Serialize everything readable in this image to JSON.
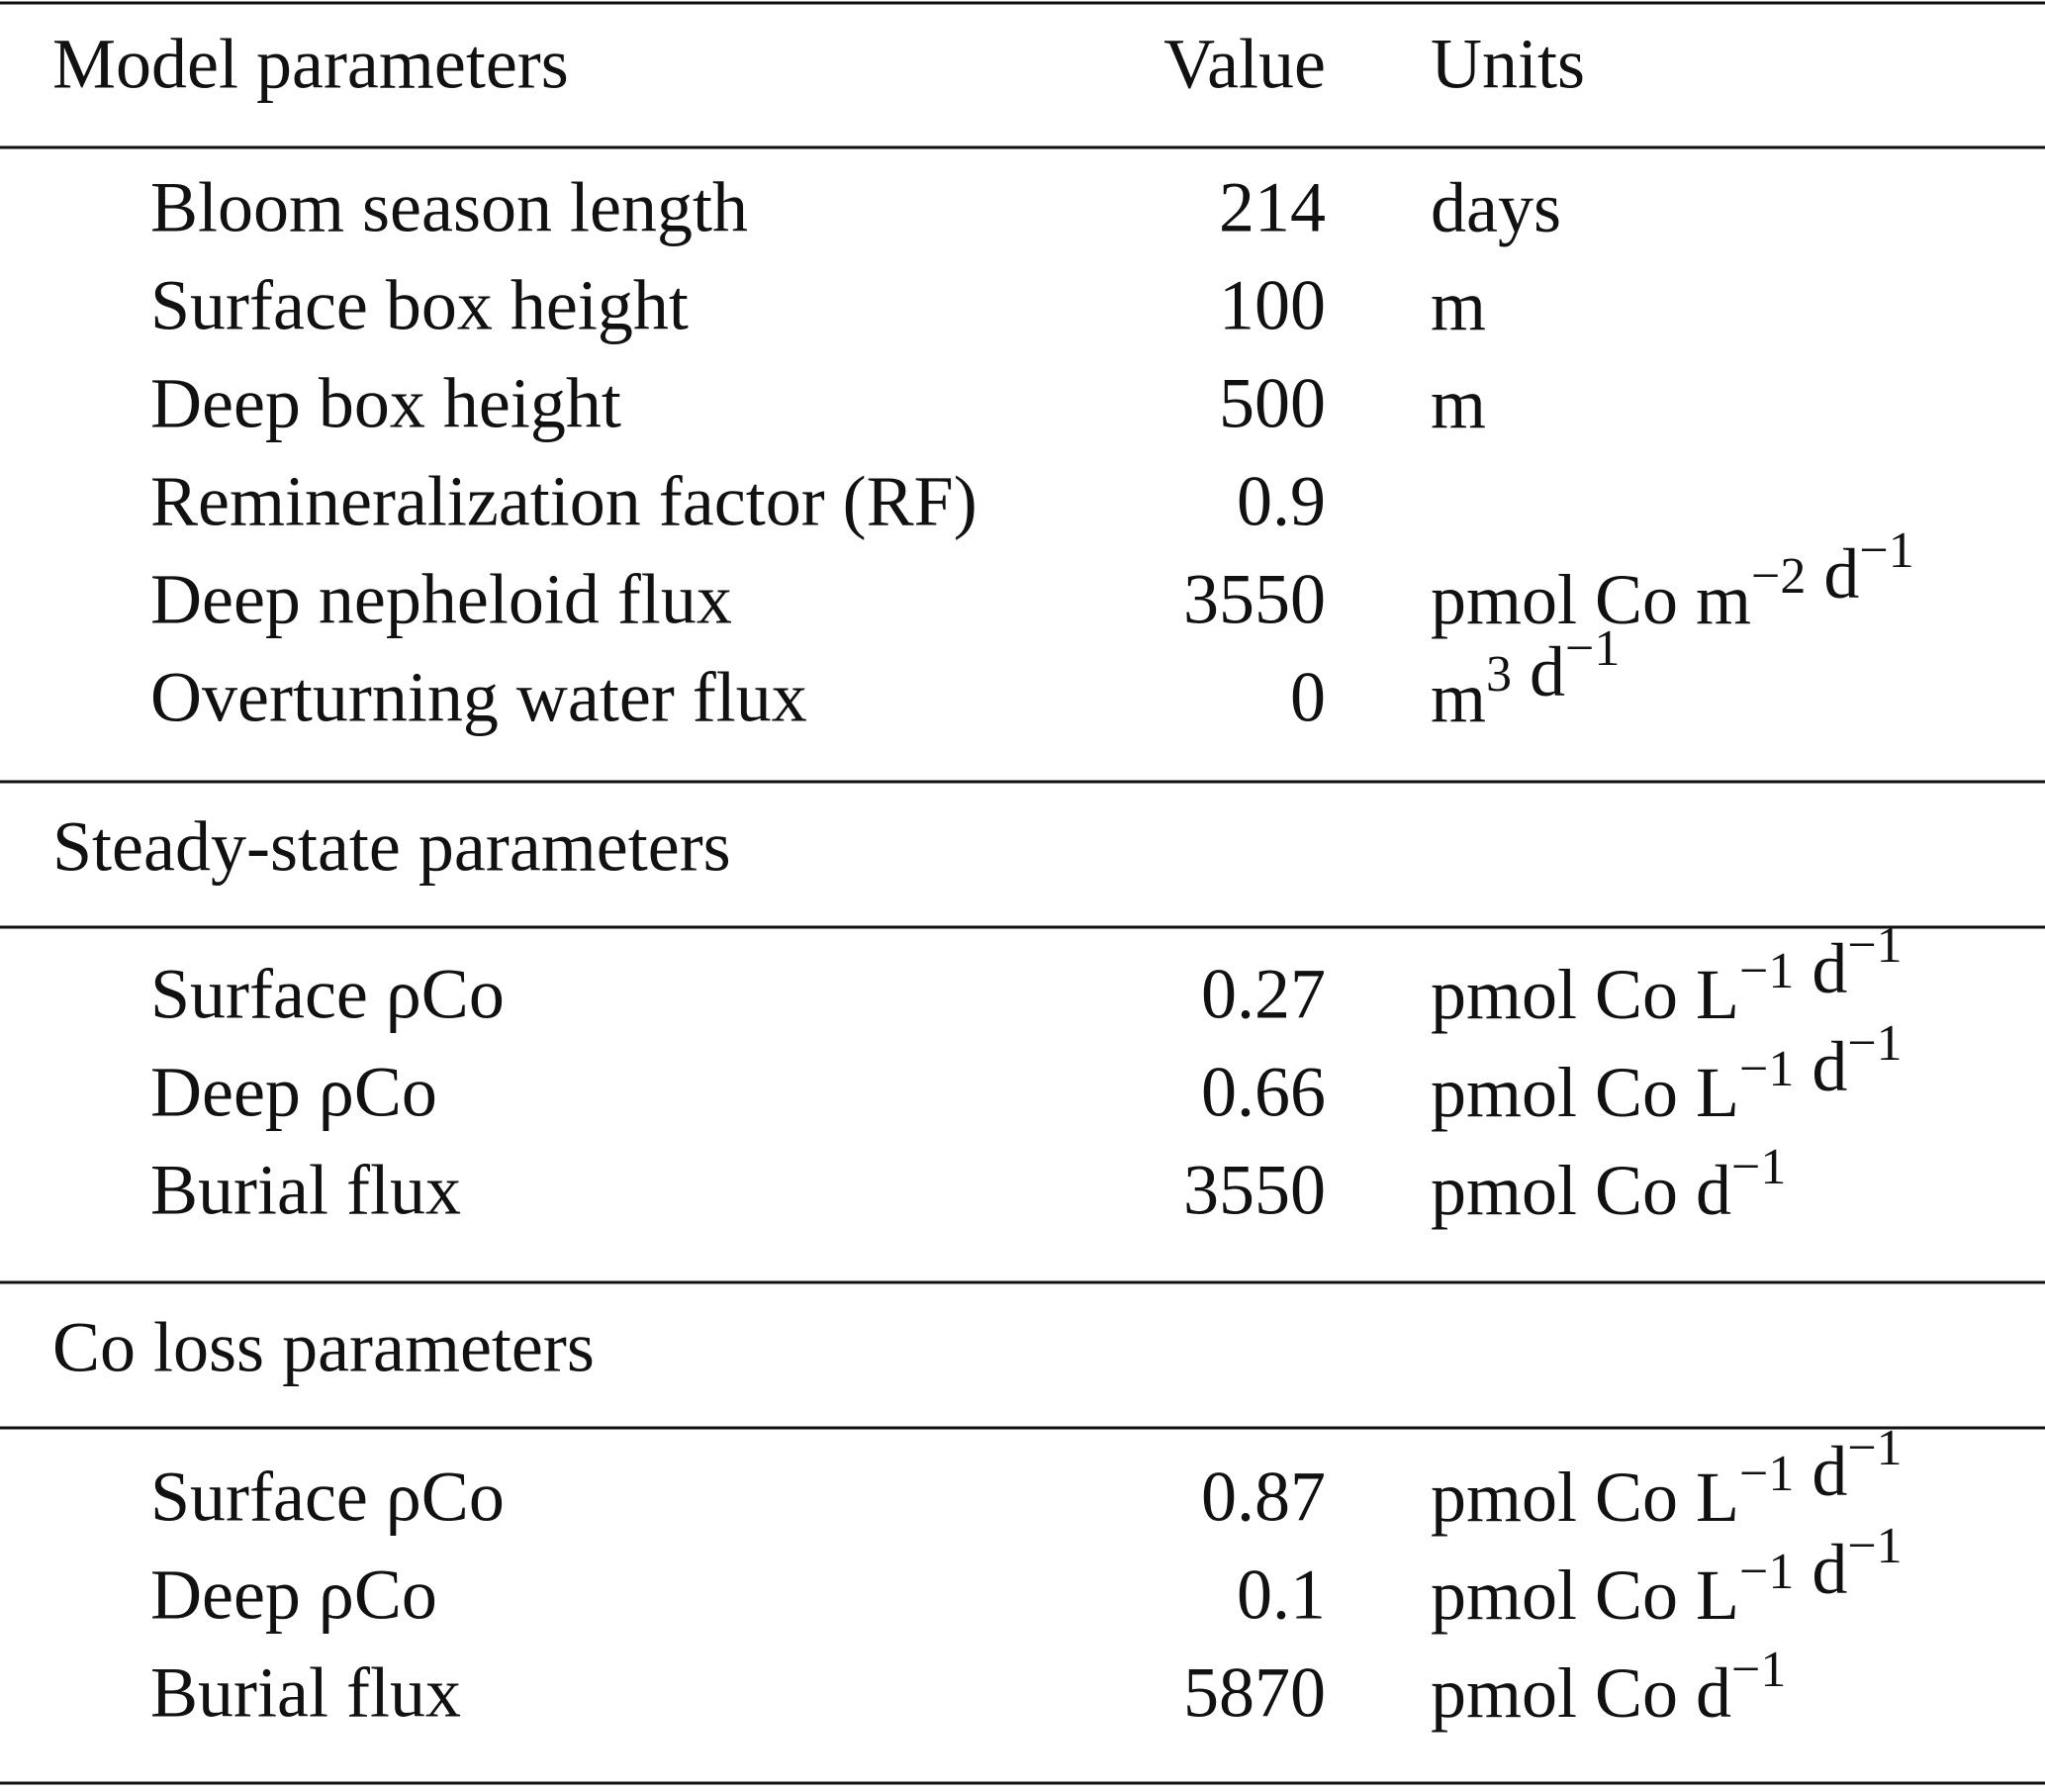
{
  "header": {
    "parameter": "Model parameters",
    "value": "Value",
    "units": "Units"
  },
  "groups": [
    {
      "rows": [
        {
          "label": "Bloom season length",
          "value": 214,
          "units": [
            {
              "text": "days"
            }
          ]
        },
        {
          "label": "Surface box height",
          "value": 100,
          "units": [
            {
              "text": "m"
            }
          ]
        },
        {
          "label": "Deep box height",
          "value": 500,
          "units": [
            {
              "text": "m"
            }
          ]
        },
        {
          "label": "Remineralization factor (RF)",
          "value": 0.9
        },
        {
          "label": "Deep nepheloid flux",
          "value": 3550,
          "units": [
            {
              "text": "pmol Co m"
            },
            {
              "sup": "−2"
            },
            {
              "text": " d"
            },
            {
              "sup": "−1"
            }
          ]
        },
        {
          "label": "Overturning water flux",
          "value": 0,
          "units": [
            {
              "text": "m"
            },
            {
              "sup": "3"
            },
            {
              "text": " d"
            },
            {
              "sup": "−1"
            }
          ]
        }
      ]
    },
    {
      "title": "Steady-state parameters",
      "rows": [
        {
          "label": "Surface ρCo",
          "value": 0.27,
          "units": [
            {
              "text": "pmol Co L"
            },
            {
              "sup": "−1"
            },
            {
              "text": " d"
            },
            {
              "sup": "−1"
            }
          ]
        },
        {
          "label": "Deep ρCo",
          "value": 0.66,
          "units": [
            {
              "text": "pmol Co L"
            },
            {
              "sup": "−1"
            },
            {
              "text": " d"
            },
            {
              "sup": "−1"
            }
          ]
        },
        {
          "label": "Burial flux",
          "value": 3550,
          "units": [
            {
              "text": "pmol Co d"
            },
            {
              "sup": "−1"
            }
          ]
        }
      ]
    },
    {
      "title": "Co loss parameters",
      "rows": [
        {
          "label": "Surface ρCo",
          "value": 0.87,
          "units": [
            {
              "text": "pmol Co L"
            },
            {
              "sup": "−1"
            },
            {
              "text": " d"
            },
            {
              "sup": "−1"
            }
          ]
        },
        {
          "label": "Deep ρCo",
          "value": 0.1,
          "units": [
            {
              "text": "pmol Co L"
            },
            {
              "sup": "−1"
            },
            {
              "text": " d"
            },
            {
              "sup": "−1"
            }
          ]
        },
        {
          "label": "Burial flux",
          "value": 5870,
          "units": [
            {
              "text": "pmol Co d"
            },
            {
              "sup": "−1"
            }
          ]
        }
      ]
    }
  ]
}
